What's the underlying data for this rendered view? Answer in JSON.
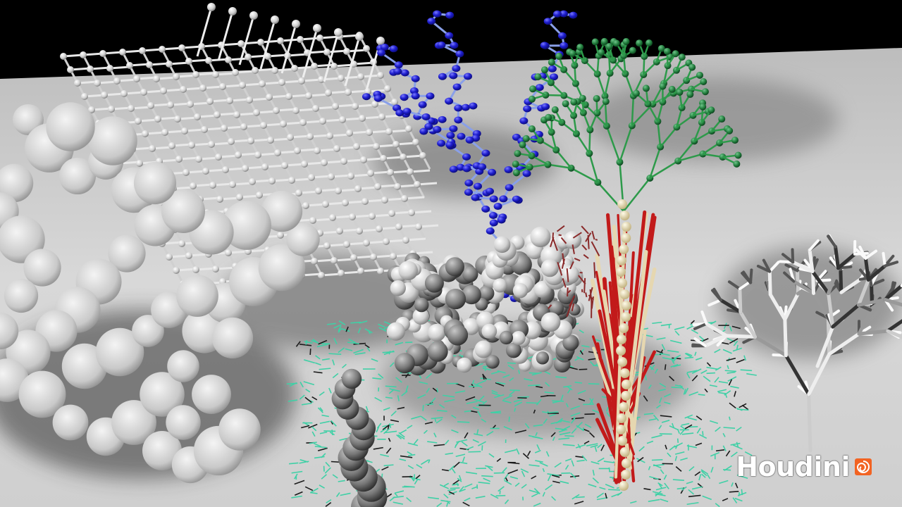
{
  "watermark": {
    "text": "Houdini",
    "icon": "houdini-logo-icon"
  },
  "colors": {
    "background_top": "#000000",
    "floor": "#d9d9d9",
    "blue_molecule": "#1e1ecf",
    "green_tree": "#1f7a3a",
    "red_tree": "#c21a1a",
    "teal_grass": "#3fd0a6",
    "houdini_orange": "#f26322"
  }
}
